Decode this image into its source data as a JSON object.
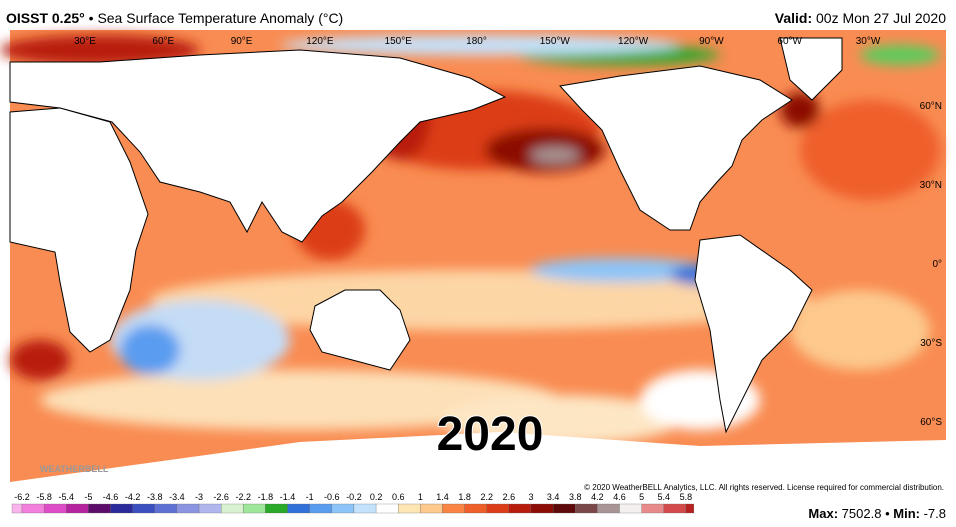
{
  "header": {
    "product": "OISST 0.25°",
    "separator": "•",
    "title": "Sea Surface Temperature Anomaly (°C)",
    "valid_label": "Valid:",
    "valid_time": "00z Mon 27 Jul 2020"
  },
  "map": {
    "lon_labels": [
      "30°E",
      "60°E",
      "90°E",
      "120°E",
      "150°E",
      "180°",
      "150°W",
      "120°W",
      "90°W",
      "60°W",
      "30°W"
    ],
    "lat_labels": [
      "60°N",
      "30°N",
      "0°",
      "30°S",
      "60°S"
    ],
    "year": "2020",
    "logo": "WEATHERBELL",
    "copyright": "© 2020 WeatherBELL Analytics, LLC. All rights reserved. License required for commercial distribution."
  },
  "colorbar": {
    "labels": [
      -6.2,
      -5.8,
      -5.4,
      -5,
      -4.6,
      -4.2,
      -3.8,
      -3.4,
      -3,
      -2.6,
      -2.2,
      -1.8,
      -1.4,
      -1,
      -0.6,
      -0.2,
      0.2,
      0.6,
      1,
      1.4,
      1.8,
      2.2,
      2.6,
      3,
      3.4,
      3.8,
      4.2,
      4.6,
      5,
      5.4,
      5.8
    ],
    "colors": [
      "#f9b4ec",
      "#f27fdc",
      "#de4cc8",
      "#b5239f",
      "#86117e",
      "#5c0d6a",
      "#2a2a9a",
      "#3c4fc0",
      "#5f70d4",
      "#8a95e2",
      "#b2b6ee",
      "#d8f2d0",
      "#9ee69a",
      "#5ccc5c",
      "#2aa82a",
      "#3070d8",
      "#5a9cf0",
      "#8cc4f8",
      "#c4e2fc",
      "#ffffff",
      "#fde6b4",
      "#fdc98c",
      "#fca868",
      "#f98444",
      "#ef5f2a",
      "#dc3c18",
      "#b81c0c",
      "#8c0c06",
      "#5e0a0a",
      "#7a4848",
      "#a89494",
      "#d4d0d0",
      "#f4f0f0",
      "#e88a8a",
      "#d44a4a",
      "#b82020"
    ]
  },
  "stats": {
    "max_label": "Max:",
    "max": 7502.8,
    "separator": "•",
    "min_label": "Min:",
    "min": -7.8
  }
}
